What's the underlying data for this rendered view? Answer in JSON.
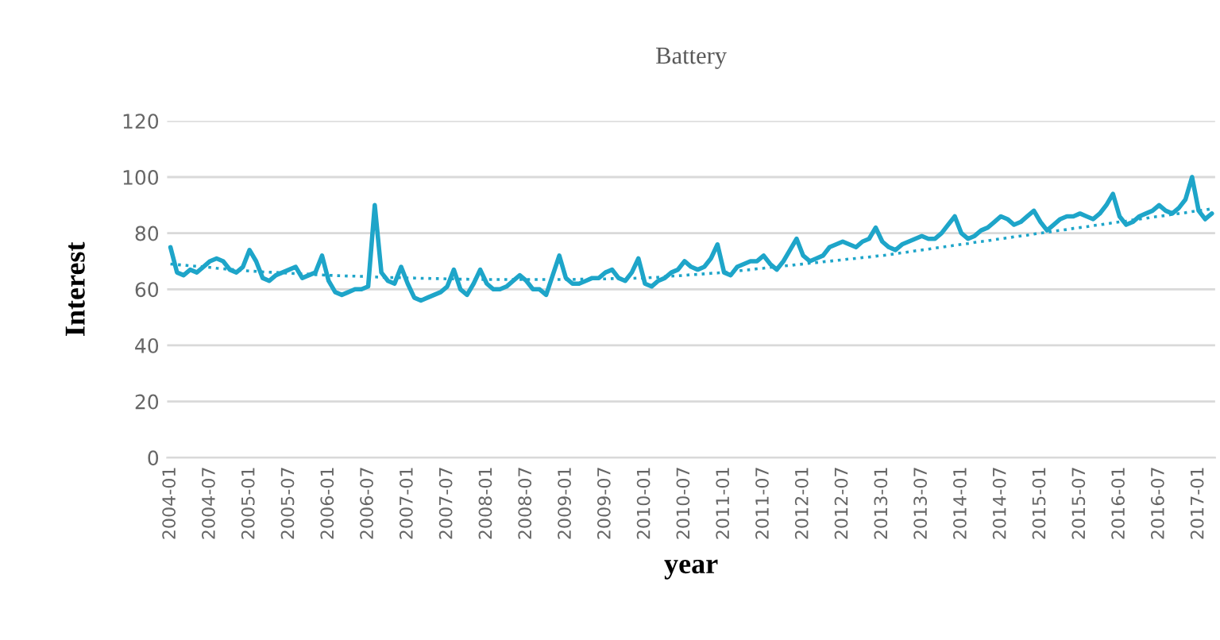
{
  "chart_data": {
    "type": "line",
    "title": "Battery",
    "xlabel": "year",
    "ylabel": "Interest",
    "categories": [
      "2004-01",
      null,
      null,
      null,
      null,
      null,
      "2004-07",
      null,
      null,
      null,
      null,
      null,
      "2005-01",
      null,
      null,
      null,
      null,
      null,
      "2005-07",
      null,
      null,
      null,
      null,
      null,
      "2006-01",
      null,
      null,
      null,
      null,
      null,
      "2006-07",
      null,
      null,
      null,
      null,
      null,
      "2007-01",
      null,
      null,
      null,
      null,
      null,
      "2007-07",
      null,
      null,
      null,
      null,
      null,
      "2008-01",
      null,
      null,
      null,
      null,
      null,
      "2008-07",
      null,
      null,
      null,
      null,
      null,
      "2009-01",
      null,
      null,
      null,
      null,
      null,
      "2009-07",
      null,
      null,
      null,
      null,
      null,
      "2010-01",
      null,
      null,
      null,
      null,
      null,
      "2010-07",
      null,
      null,
      null,
      null,
      null,
      "2011-01",
      null,
      null,
      null,
      null,
      null,
      "2011-07",
      null,
      null,
      null,
      null,
      null,
      "2012-01",
      null,
      null,
      null,
      null,
      null,
      "2012-07",
      null,
      null,
      null,
      null,
      null,
      "2013-01",
      null,
      null,
      null,
      null,
      null,
      "2013-07",
      null,
      null,
      null,
      null,
      null,
      "2014-01",
      null,
      null,
      null,
      null,
      null,
      "2014-07",
      null,
      null,
      null,
      null,
      null,
      "2015-01",
      null,
      null,
      null,
      null,
      null,
      "2015-07",
      null,
      null,
      null,
      null,
      null,
      "2016-01",
      null,
      null,
      null,
      null,
      null,
      "2016-07",
      null,
      null,
      null,
      null,
      null,
      "2017-01",
      null,
      null
    ],
    "series": [
      {
        "color": "#1ea5c9",
        "line_style": "solid",
        "values": [
          75,
          66,
          65,
          67,
          66,
          68,
          70,
          71,
          70,
          67,
          66,
          68,
          74,
          70,
          64,
          63,
          65,
          66,
          67,
          68,
          64,
          65,
          66,
          72,
          63,
          59,
          58,
          59,
          60,
          60,
          61,
          90,
          66,
          63,
          62,
          68,
          62,
          57,
          56,
          57,
          58,
          59,
          61,
          67,
          60,
          58,
          62,
          67,
          62,
          60,
          60,
          61,
          63,
          65,
          63,
          60,
          60,
          58,
          65,
          72,
          64,
          62,
          62,
          63,
          64,
          64,
          66,
          67,
          64,
          63,
          66,
          71,
          62,
          61,
          63,
          64,
          66,
          67,
          70,
          68,
          67,
          68,
          71,
          76,
          66,
          65,
          68,
          69,
          70,
          70,
          72,
          69,
          67,
          70,
          74,
          78,
          72,
          70,
          71,
          72,
          75,
          76,
          77,
          76,
          75,
          77,
          78,
          82,
          77,
          75,
          74,
          76,
          77,
          78,
          79,
          78,
          78,
          80,
          83,
          86,
          80,
          78,
          79,
          81,
          82,
          84,
          86,
          85,
          83,
          84,
          86,
          88,
          84,
          81,
          83,
          85,
          86,
          86,
          87,
          86,
          85,
          87,
          90,
          94,
          86,
          83,
          84,
          86,
          87,
          88,
          90,
          88,
          87,
          89,
          92,
          100,
          88,
          85,
          87
        ]
      },
      {
        "color": "#1ea5c9",
        "line_style": "dotted",
        "values": [
          69,
          68.8,
          68.6,
          68.4,
          68.2,
          68,
          67.8,
          67.5,
          67.3,
          67.1,
          66.9,
          66.7,
          66.5,
          66.4,
          66.2,
          66.1,
          66,
          65.9,
          65.7,
          65.6,
          65.5,
          65.4,
          65.2,
          65.1,
          65,
          64.9,
          64.8,
          64.7,
          64.7,
          64.6,
          64.5,
          64.4,
          64.3,
          64.2,
          64.2,
          64.1,
          64,
          64,
          63.9,
          63.9,
          63.8,
          63.8,
          63.7,
          63.7,
          63.6,
          63.6,
          63.5,
          63.5,
          63.5,
          63.5,
          63.5,
          63.5,
          63.5,
          63.5,
          63.5,
          63.5,
          63.5,
          63.5,
          63.5,
          63.5,
          63.5,
          63.5,
          63.6,
          63.6,
          63.7,
          63.7,
          63.7,
          63.8,
          63.8,
          63.9,
          63.9,
          64,
          64,
          64.2,
          64.3,
          64.5,
          64.7,
          64.8,
          65,
          65.2,
          65.3,
          65.5,
          65.7,
          65.8,
          66,
          66.3,
          66.5,
          66.8,
          67,
          67.3,
          67.5,
          67.8,
          68,
          68.3,
          68.5,
          68.8,
          69,
          69.3,
          69.5,
          69.8,
          70,
          70.3,
          70.5,
          70.8,
          71,
          71.3,
          71.5,
          71.8,
          72,
          72.3,
          72.7,
          73,
          73.3,
          73.7,
          74,
          74.3,
          74.7,
          75,
          75.3,
          75.7,
          76,
          76.3,
          76.7,
          77,
          77.3,
          77.7,
          78,
          78.3,
          78.7,
          79,
          79.3,
          79.7,
          80,
          80.3,
          80.7,
          81,
          81.3,
          81.7,
          82,
          82.3,
          82.7,
          83,
          83.3,
          83.7,
          84,
          84.3,
          84.7,
          85,
          85.3,
          85.7,
          86,
          86.3,
          86.7,
          87,
          87.3,
          87.7,
          88,
          88.3,
          88.7
        ]
      }
    ],
    "ylim": [
      0,
      120
    ],
    "yticks": [
      0,
      20,
      40,
      60,
      80,
      100,
      120
    ],
    "grid": "y",
    "legend": false,
    "marker": "none"
  }
}
